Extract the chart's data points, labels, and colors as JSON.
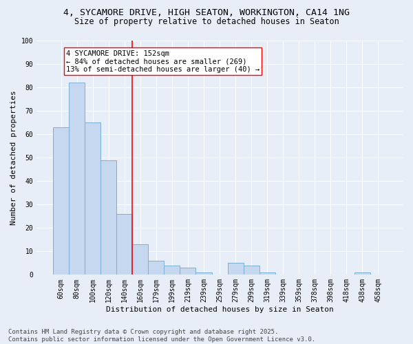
{
  "title1": "4, SYCAMORE DRIVE, HIGH SEATON, WORKINGTON, CA14 1NG",
  "title2": "Size of property relative to detached houses in Seaton",
  "xlabel": "Distribution of detached houses by size in Seaton",
  "ylabel": "Number of detached properties",
  "categories": [
    "60sqm",
    "80sqm",
    "100sqm",
    "120sqm",
    "140sqm",
    "160sqm",
    "179sqm",
    "199sqm",
    "219sqm",
    "239sqm",
    "259sqm",
    "279sqm",
    "299sqm",
    "319sqm",
    "339sqm",
    "359sqm",
    "378sqm",
    "398sqm",
    "418sqm",
    "438sqm",
    "458sqm"
  ],
  "values": [
    63,
    82,
    65,
    49,
    26,
    13,
    6,
    4,
    3,
    1,
    0,
    5,
    4,
    1,
    0,
    0,
    0,
    0,
    0,
    1,
    0
  ],
  "bar_color": "#c5d8f0",
  "bar_edge_color": "#7aafd4",
  "vline_color": "red",
  "vline_index": 4.5,
  "annotation_text": "4 SYCAMORE DRIVE: 152sqm\n← 84% of detached houses are smaller (269)\n13% of semi-detached houses are larger (40) →",
  "annotation_box_color": "white",
  "annotation_box_edge": "red",
  "ylim": [
    0,
    100
  ],
  "yticks": [
    0,
    10,
    20,
    30,
    40,
    50,
    60,
    70,
    80,
    90,
    100
  ],
  "footer_text": "Contains HM Land Registry data © Crown copyright and database right 2025.\nContains public sector information licensed under the Open Government Licence v3.0.",
  "bg_color": "#e8eef8",
  "plot_bg_color": "#e8eef8",
  "title_fontsize": 9.5,
  "subtitle_fontsize": 8.5,
  "axis_label_fontsize": 8,
  "tick_fontsize": 7,
  "footer_fontsize": 6.5,
  "annot_fontsize": 7.5
}
